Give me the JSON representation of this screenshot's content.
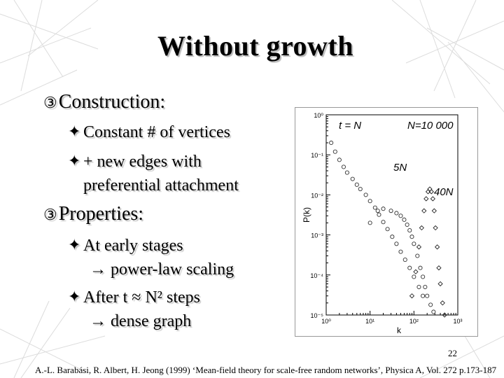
{
  "slide": {
    "title": "Without growth",
    "section1": {
      "mark": "③",
      "label": "Construction:",
      "items": [
        "Constant # of vertices",
        "+ new edges with",
        "preferential attachment"
      ]
    },
    "section2": {
      "mark": "③",
      "label": "Properties:",
      "items": [
        "At early stages",
        "→ power-law scaling",
        "After t ≈ N² steps",
        "→ dense graph"
      ]
    },
    "bullet_icon": "✦",
    "page_number": "22",
    "citation": "A.-L. Barabási, R. Albert, H. Jeong (1999) ‘Mean-field theory for scale-free random networks’, Physica A, Vol. 272 p.173-187"
  },
  "chart_data": {
    "type": "scatter",
    "x_scale": "log",
    "y_scale": "log",
    "xlabel": "k",
    "ylabel": "P(k)",
    "y_tick_labels": [
      "10⁰",
      "10⁻¹",
      "10⁻²",
      "10⁻³",
      "10⁻⁴",
      "10⁻⁵"
    ],
    "x_tick_labels": [
      "10⁰",
      "10¹",
      "10²",
      "10³"
    ],
    "xlim": [
      1,
      1000
    ],
    "ylim": [
      1e-05,
      1
    ],
    "annotations": [
      "t = N",
      "N=10 000",
      "5N",
      "40N"
    ],
    "series": [
      {
        "name": "t = N",
        "marker": "circle",
        "x": [
          1.3,
          1.6,
          2,
          2.5,
          3,
          4,
          5,
          6,
          8,
          10,
          13,
          16,
          20,
          25,
          32,
          40,
          50,
          63,
          80,
          100,
          130,
          160
        ],
        "y": [
          0.2,
          0.12,
          0.075,
          0.05,
          0.036,
          0.025,
          0.018,
          0.014,
          0.01,
          0.007,
          0.0048,
          0.0032,
          0.0021,
          0.0014,
          0.0009,
          0.0006,
          0.00038,
          0.00024,
          0.00015,
          9e-05,
          5e-05,
          3e-05
        ]
      },
      {
        "name": "5N",
        "marker": "circle",
        "x": [
          10,
          15,
          20,
          30,
          40,
          50,
          60,
          70,
          80,
          90,
          100,
          120,
          140,
          160,
          180,
          200,
          240,
          280
        ],
        "y": [
          0.002,
          0.004,
          0.0045,
          0.004,
          0.0035,
          0.003,
          0.0024,
          0.0018,
          0.0013,
          0.0009,
          0.0006,
          0.0003,
          0.00015,
          9e-05,
          5e-05,
          3e-05,
          1.8e-05,
          1.2e-05
        ]
      },
      {
        "name": "40N",
        "marker": "diamond",
        "x": [
          90,
          110,
          130,
          150,
          170,
          190,
          210,
          230,
          250,
          270,
          290,
          310,
          340,
          370,
          400,
          450,
          500
        ],
        "y": [
          3e-05,
          0.00012,
          0.0005,
          0.0015,
          0.004,
          0.008,
          0.012,
          0.014,
          0.012,
          0.008,
          0.004,
          0.0015,
          0.0005,
          0.00015,
          6e-05,
          2e-05,
          1e-05
        ]
      }
    ]
  }
}
